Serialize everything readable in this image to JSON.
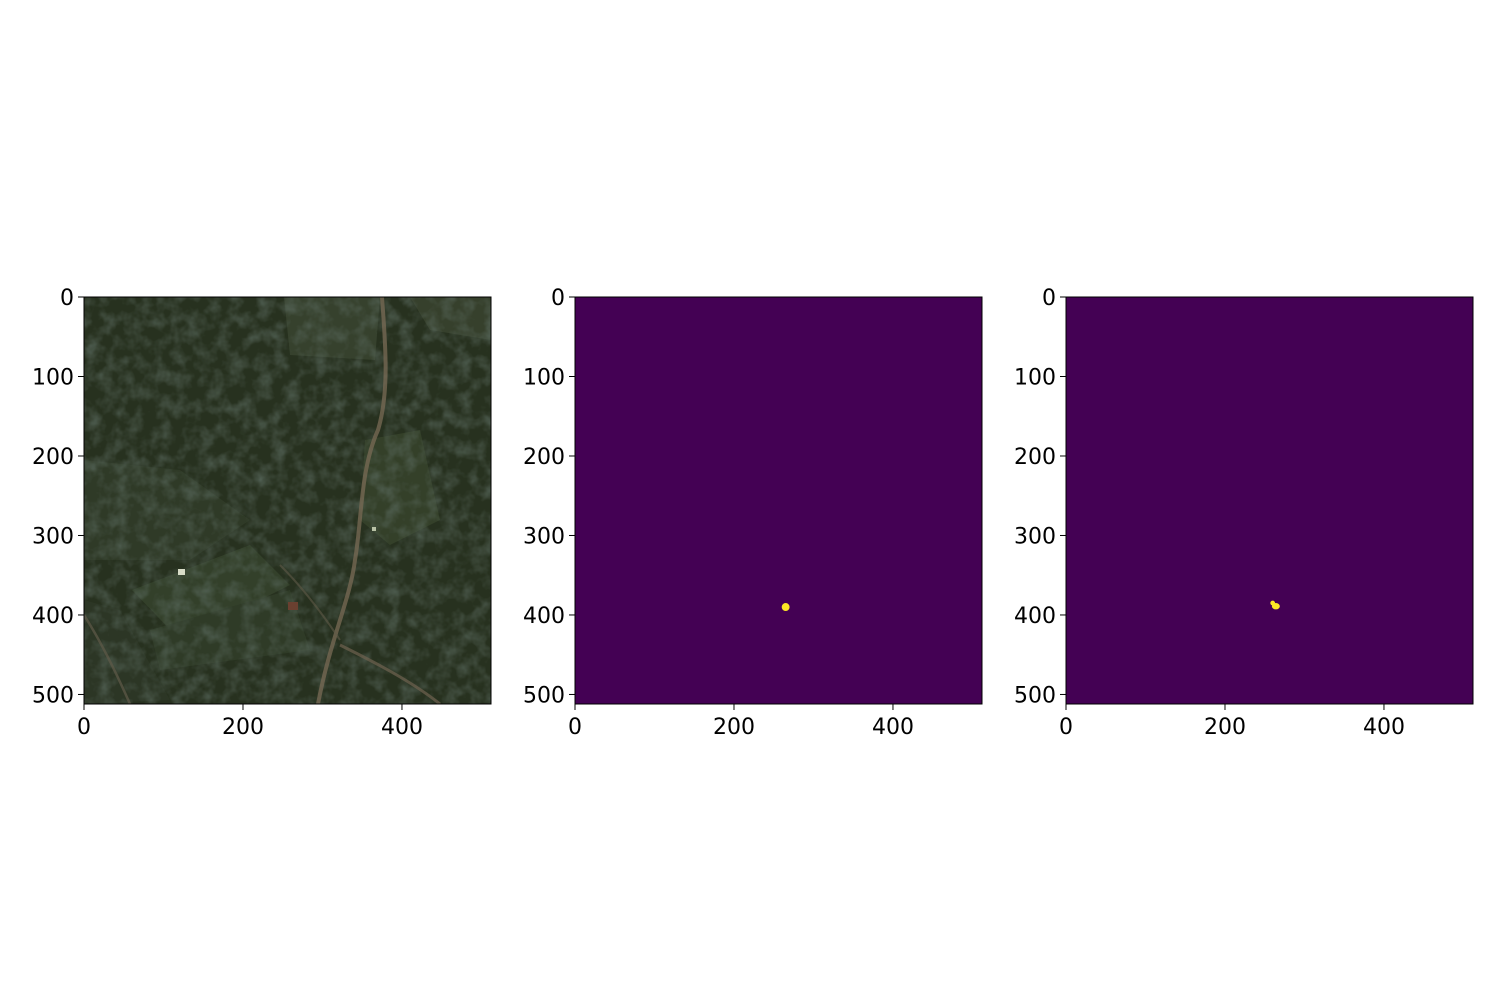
{
  "figure": {
    "panel_count": 3,
    "axis": {
      "x_range": [
        0,
        512
      ],
      "y_range": [
        512,
        0
      ],
      "x_ticks": [
        0,
        200,
        400
      ],
      "y_ticks": [
        0,
        100,
        200,
        300,
        400,
        500
      ],
      "x_tick_labels": [
        "0",
        "200",
        "400"
      ],
      "y_tick_labels": [
        "0",
        "100",
        "200",
        "300",
        "400",
        "500"
      ]
    },
    "colors": {
      "mask_background": "#440154",
      "mask_foreground": "#fde725",
      "satellite_base": "#26301f",
      "frame": "#000000"
    },
    "panels": [
      {
        "kind": "satellite-image",
        "content": "aerial view of forest, fields and dirt road"
      },
      {
        "kind": "mask",
        "blobs": [
          {
            "cx": 265,
            "cy": 390,
            "rx": 5,
            "ry": 5
          }
        ]
      },
      {
        "kind": "mask",
        "blobs": [
          {
            "cx": 260,
            "cy": 385,
            "rx": 3,
            "ry": 3
          },
          {
            "cx": 264,
            "cy": 389,
            "rx": 5,
            "ry": 4
          }
        ]
      }
    ]
  }
}
